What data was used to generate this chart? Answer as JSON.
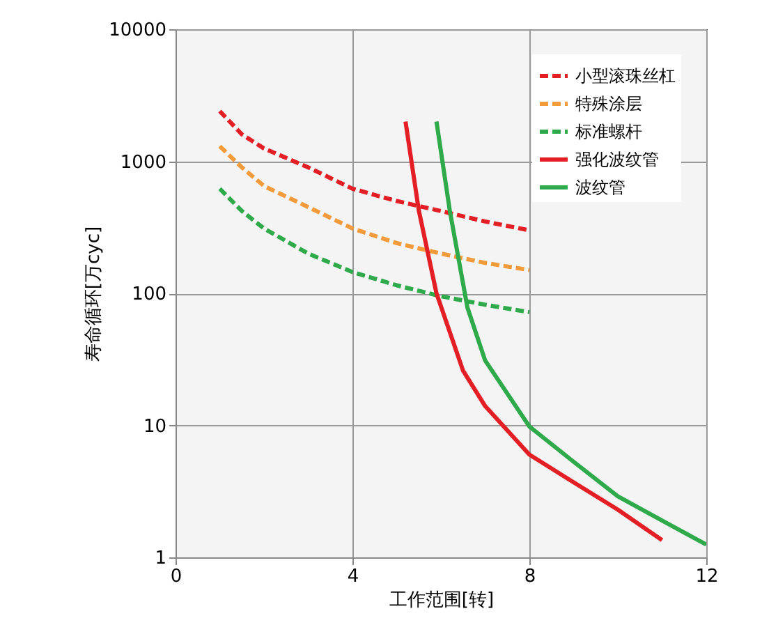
{
  "chart_data": {
    "type": "line",
    "xlabel": "工作范围[转]",
    "ylabel": "寿命循环[万cyc]",
    "xlim": [
      0,
      12
    ],
    "xticks": [
      0,
      4,
      8,
      12
    ],
    "ylim": [
      1,
      10000
    ],
    "yticks": [
      1,
      10,
      100,
      1000,
      10000
    ],
    "log": "y",
    "grid": true,
    "legend": "top right",
    "series": [
      {
        "name": "小型滚珠丝杠",
        "color": "#e31e24",
        "line_style": "dashed",
        "x": [
          1,
          1.5,
          2,
          3,
          4,
          5,
          6,
          7,
          8
        ],
        "values": [
          2400,
          1600,
          1250,
          900,
          620,
          500,
          420,
          350,
          300
        ]
      },
      {
        "name": "特殊涂层",
        "color": "#f39a3b",
        "line_style": "dashed",
        "x": [
          1,
          1.5,
          2,
          3,
          4,
          5,
          6,
          7,
          8
        ],
        "values": [
          1300,
          900,
          650,
          450,
          310,
          240,
          200,
          170,
          150
        ]
      },
      {
        "name": "标准螺杆",
        "color": "#2eaa4a",
        "line_style": "dashed",
        "x": [
          1,
          1.5,
          2,
          3,
          4,
          5,
          6,
          7,
          8
        ],
        "values": [
          620,
          420,
          310,
          200,
          145,
          115,
          95,
          82,
          72
        ]
      },
      {
        "name": "强化波纹管",
        "color": "#e31e24",
        "line_style": "solid",
        "x": [
          5.2,
          5.5,
          5.9,
          6.5,
          7,
          8,
          9,
          10,
          11
        ],
        "values": [
          2000,
          425,
          100,
          26,
          14,
          6,
          3.7,
          2.3,
          1.35
        ]
      },
      {
        "name": "波纹管",
        "color": "#2eaa4a",
        "line_style": "solid",
        "x": [
          5.9,
          6.2,
          6.6,
          7,
          8,
          9,
          10,
          11,
          12
        ],
        "values": [
          2000,
          425,
          78,
          31,
          9.8,
          5.3,
          2.9,
          1.9,
          1.25
        ]
      }
    ]
  }
}
